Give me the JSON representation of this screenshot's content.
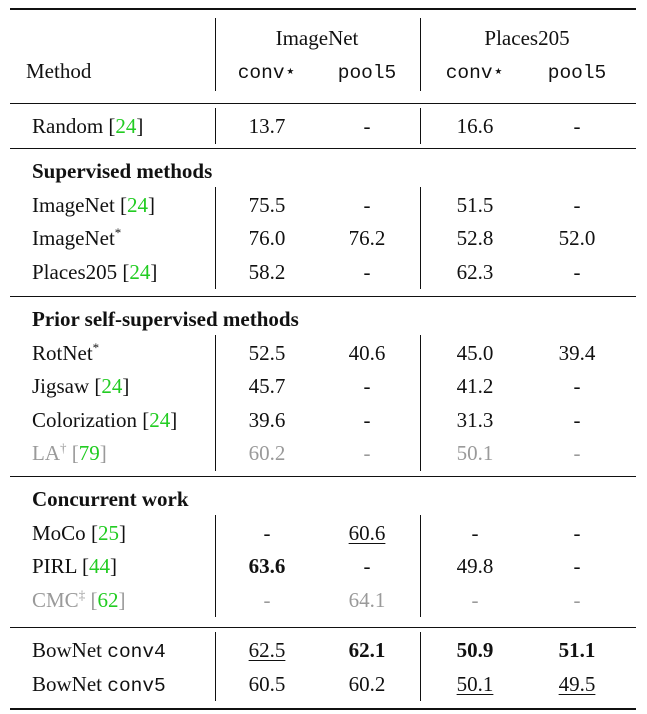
{
  "header": {
    "method_label": "Method",
    "group1": "ImageNet",
    "group2": "Places205",
    "col_conv": "conv⋆",
    "col_pool": "pool5"
  },
  "sections": [
    {
      "title": "",
      "rows": [
        {
          "method": "Random",
          "sup": "",
          "cite": "24",
          "code": "",
          "gray": false,
          "values": [
            {
              "v": "13.7"
            },
            {
              "v": "-"
            },
            {
              "v": "16.6"
            },
            {
              "v": "-"
            }
          ]
        }
      ]
    },
    {
      "title": "Supervised methods",
      "rows": [
        {
          "method": "ImageNet",
          "sup": "",
          "cite": "24",
          "code": "",
          "gray": false,
          "values": [
            {
              "v": "75.5"
            },
            {
              "v": "-"
            },
            {
              "v": "51.5"
            },
            {
              "v": "-"
            }
          ]
        },
        {
          "method": "ImageNet",
          "sup": "*",
          "cite": "",
          "code": "",
          "gray": false,
          "values": [
            {
              "v": "76.0"
            },
            {
              "v": "76.2"
            },
            {
              "v": "52.8"
            },
            {
              "v": "52.0"
            }
          ]
        },
        {
          "method": "Places205",
          "sup": "",
          "cite": "24",
          "code": "",
          "gray": false,
          "values": [
            {
              "v": "58.2"
            },
            {
              "v": "-"
            },
            {
              "v": "62.3"
            },
            {
              "v": "-"
            }
          ]
        }
      ]
    },
    {
      "title": "Prior self-supervised methods",
      "rows": [
        {
          "method": "RotNet",
          "sup": "*",
          "cite": "",
          "code": "",
          "gray": false,
          "values": [
            {
              "v": "52.5"
            },
            {
              "v": "40.6"
            },
            {
              "v": "45.0"
            },
            {
              "v": "39.4"
            }
          ]
        },
        {
          "method": "Jigsaw",
          "sup": "",
          "cite": "24",
          "code": "",
          "gray": false,
          "values": [
            {
              "v": "45.7"
            },
            {
              "v": "-"
            },
            {
              "v": "41.2"
            },
            {
              "v": "-"
            }
          ]
        },
        {
          "method": "Colorization",
          "sup": "",
          "cite": "24",
          "code": "",
          "gray": false,
          "values": [
            {
              "v": "39.6"
            },
            {
              "v": "-"
            },
            {
              "v": "31.3"
            },
            {
              "v": "-"
            }
          ]
        },
        {
          "method": "LA",
          "sup": "†",
          "cite": "79",
          "code": "",
          "gray": true,
          "values": [
            {
              "v": "60.2"
            },
            {
              "v": "-"
            },
            {
              "v": "50.1"
            },
            {
              "v": "-"
            }
          ]
        }
      ]
    },
    {
      "title": "Concurrent work",
      "rows": [
        {
          "method": "MoCo",
          "sup": "",
          "cite": "25",
          "code": "",
          "gray": false,
          "values": [
            {
              "v": "-"
            },
            {
              "v": "60.6",
              "underline": true
            },
            {
              "v": "-"
            },
            {
              "v": "-"
            }
          ]
        },
        {
          "method": "PIRL",
          "sup": "",
          "cite": "44",
          "code": "",
          "gray": false,
          "values": [
            {
              "v": "63.6",
              "bold": true
            },
            {
              "v": "-"
            },
            {
              "v": "49.8"
            },
            {
              "v": "-"
            }
          ]
        },
        {
          "method": "CMC",
          "sup": "‡",
          "cite": "62",
          "code": "",
          "gray": true,
          "values": [
            {
              "v": "-"
            },
            {
              "v": "64.1"
            },
            {
              "v": "-"
            },
            {
              "v": "-"
            }
          ]
        }
      ]
    },
    {
      "title": "",
      "rows": [
        {
          "method": "BowNet",
          "sup": "",
          "cite": "",
          "code": "conv4",
          "gray": false,
          "values": [
            {
              "v": "62.5",
              "underline": true
            },
            {
              "v": "62.1",
              "bold": true
            },
            {
              "v": "50.9",
              "bold": true
            },
            {
              "v": "51.1",
              "bold": true
            }
          ]
        },
        {
          "method": "BowNet",
          "sup": "",
          "cite": "",
          "code": "conv5",
          "gray": false,
          "values": [
            {
              "v": "60.5"
            },
            {
              "v": "60.2"
            },
            {
              "v": "50.1",
              "underline": true
            },
            {
              "v": "49.5",
              "underline": true
            }
          ]
        }
      ]
    }
  ]
}
